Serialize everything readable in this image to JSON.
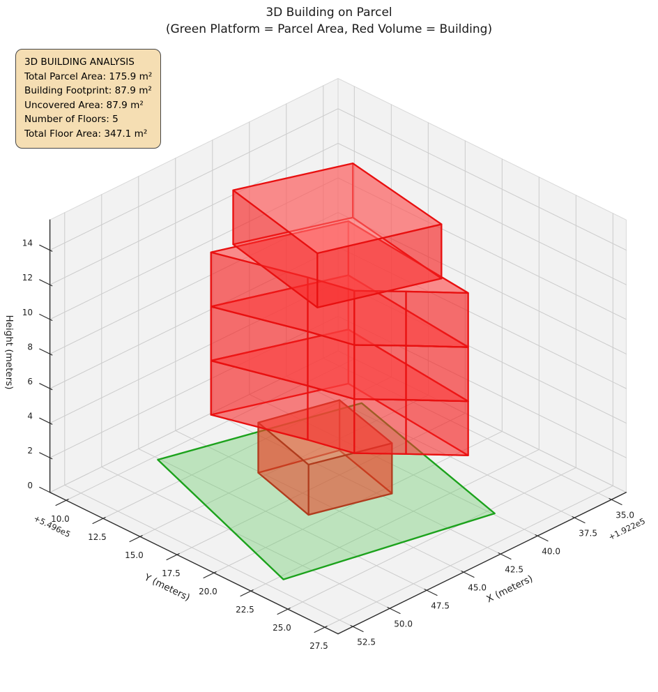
{
  "figure": {
    "title": "3D Building on Parcel",
    "subtitle": "(Green Platform = Parcel Area, Red Volume = Building)"
  },
  "info_box": {
    "title": "3D BUILDING ANALYSIS",
    "lines": [
      "Total Parcel Area: 175.9 m²",
      "Building Footprint: 87.9 m²",
      "Uncovered Area: 87.9 m²",
      "Number of Floors: 5",
      "Total Floor Area: 347.1 m²"
    ],
    "bg_color": "#f5deb3",
    "border_color": "#454545"
  },
  "chart_data": {
    "type": "3d-building",
    "title": "3D Building on Parcel",
    "subtitle": "(Green Platform = Parcel Area, Red Volume = Building)",
    "stats": {
      "total_parcel_area_m2": 175.9,
      "building_footprint_m2": 87.9,
      "uncovered_area_m2": 87.9,
      "number_of_floors": 5,
      "total_floor_area_m2": 347.1
    },
    "axes": {
      "x": {
        "label": "X (meters)",
        "ticks": [
          "35.0",
          "37.5",
          "40.0",
          "42.5",
          "45.0",
          "47.5",
          "50.0",
          "52.5"
        ],
        "tick_values": [
          35,
          37.5,
          40,
          42.5,
          45,
          47.5,
          50,
          52.5
        ],
        "offset_text": "+1.922e5",
        "range": [
          34,
          53.5
        ]
      },
      "y": {
        "label": "Y (meters)",
        "ticks": [
          "10.0",
          "12.5",
          "15.0",
          "17.5",
          "20.0",
          "22.5",
          "25.0",
          "27.5"
        ],
        "tick_values": [
          10,
          12.5,
          15,
          17.5,
          20,
          22.5,
          25,
          27.5
        ],
        "offset_text": "+5.496e5",
        "range": [
          8.9,
          28.4
        ]
      },
      "z": {
        "label": "Height (meters)",
        "ticks": [
          "0",
          "2",
          "4",
          "6",
          "8",
          "10",
          "12",
          "14"
        ],
        "tick_values": [
          0,
          2,
          4,
          6,
          8,
          10,
          12,
          14
        ],
        "range": [
          0,
          15.75
        ]
      }
    },
    "parcel": {
      "polygon_xy": [
        [
          47.6,
          10.3
        ],
        [
          36.8,
          13.3
        ],
        [
          39.9,
          25.4
        ],
        [
          51.6,
          22.8
        ]
      ],
      "z": 0,
      "edge_color": "#1ca21c",
      "fill_color": "rgba(110,205,110,0.40)"
    },
    "building": {
      "edge_color": "#e81010",
      "wall_fill": "rgba(244,32,32,0.40)",
      "top_fill": "rgba(255,118,118,0.50)",
      "bottom_fill": "rgba(255,70,70,0.32)",
      "floors": [
        {
          "name": "floor-1",
          "footprint": [
            [
              45.1,
              14.6
            ],
            [
              40.8,
              15.8
            ],
            [
              42.0,
              20.55
            ],
            [
              46.3,
              19.2
            ]
          ],
          "z0": 0,
          "z1": 2.9,
          "edge_color": "rgba(176,60,30,0.95)",
          "wall_fill": "rgba(230,65,35,0.42)",
          "top_fill": "rgba(240,120,90,0.48)",
          "bottom_fill": "rgba(230,65,35,0.25)"
        },
        {
          "name": "floor-2",
          "footprint": [
            [
              46.4,
              12.7
            ],
            [
              39.6,
              15.2
            ],
            [
              40.5,
              24.2
            ],
            [
              42.5,
              22.0
            ],
            [
              44.2,
              20.2
            ],
            [
              44.85,
              17.7
            ]
          ],
          "z0": 3.1,
          "z1": 6.23
        },
        {
          "name": "floor-3",
          "footprint": [
            [
              46.4,
              12.7
            ],
            [
              39.6,
              15.2
            ],
            [
              40.5,
              24.2
            ],
            [
              42.5,
              22.0
            ],
            [
              44.2,
              20.2
            ],
            [
              44.85,
              17.7
            ]
          ],
          "z0": 6.23,
          "z1": 9.36
        },
        {
          "name": "floor-4",
          "footprint": [
            [
              46.4,
              12.7
            ],
            [
              39.6,
              15.2
            ],
            [
              40.5,
              24.2
            ],
            [
              42.5,
              22.0
            ],
            [
              44.2,
              20.2
            ],
            [
              44.85,
              17.7
            ]
          ],
          "z0": 9.36,
          "z1": 12.49
        },
        {
          "name": "floor-5",
          "footprint": [
            [
              45.1,
              12.9
            ],
            [
              39.2,
              15.1
            ],
            [
              40.4,
              22.3
            ],
            [
              46.6,
              20.1
            ]
          ],
          "z0": 12.49,
          "z1": 15.62
        }
      ]
    },
    "style": {
      "pane_color": "#f2f2f2",
      "grid_color": "#cbcbcb",
      "pane_edge_color": "#d8d8d8",
      "spine_color": "#2b2b2b",
      "text_color": "#1f1f1f"
    }
  }
}
